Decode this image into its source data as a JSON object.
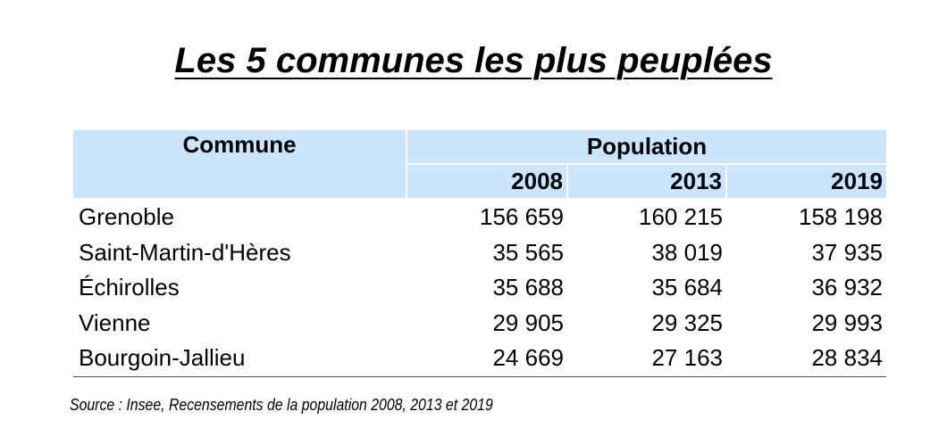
{
  "title": "Les 5 communes les plus peuplées",
  "table": {
    "header_commune": "Commune",
    "header_population": "Population",
    "years": [
      "2008",
      "2013",
      "2019"
    ],
    "rows": [
      {
        "commune": "Grenoble",
        "values": [
          "156 659",
          "160 215",
          "158 198"
        ]
      },
      {
        "commune": "Saint-Martin-d'Hères",
        "values": [
          "35 565",
          "38 019",
          "37 935"
        ]
      },
      {
        "commune": "Échirolles",
        "values": [
          "35 688",
          "35 684",
          "36 932"
        ]
      },
      {
        "commune": "Vienne",
        "values": [
          "29 905",
          "29 325",
          "29 993"
        ]
      },
      {
        "commune": "Bourgoin-Jallieu",
        "values": [
          "24 669",
          "27 163",
          "28 834"
        ]
      }
    ]
  },
  "source": "Source : Insee, Recensements de la population 2008, 2013 et 2019",
  "colors": {
    "header_background": "#cce5ff",
    "text": "#000000"
  }
}
